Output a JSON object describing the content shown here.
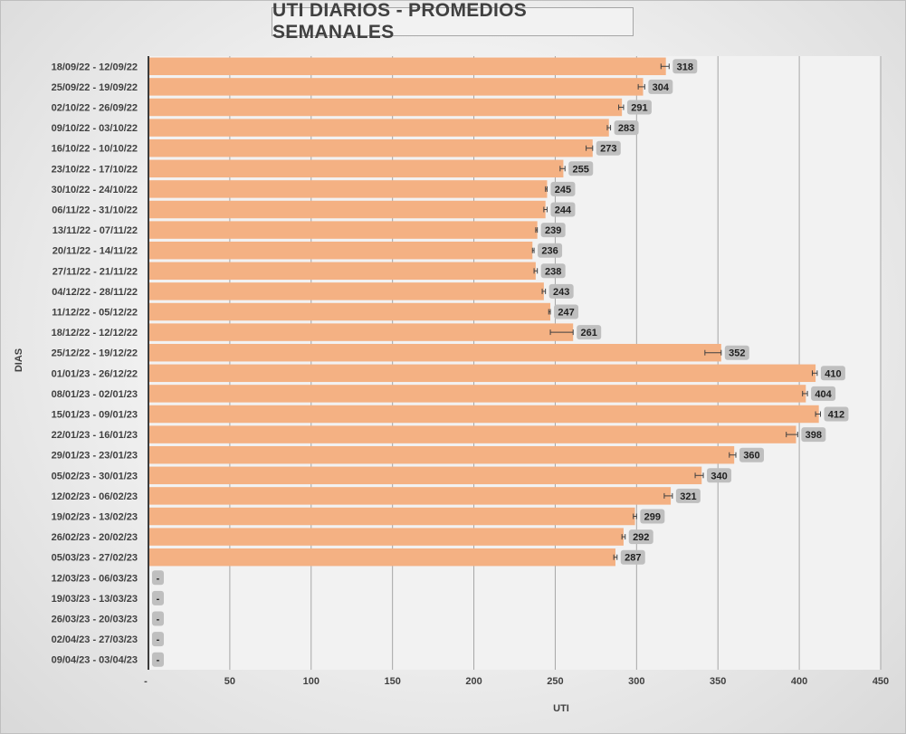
{
  "chart_data": {
    "type": "bar",
    "orientation": "horizontal",
    "title": "UTI DIARIOS - PROMEDIOS SEMANALES",
    "xlabel": "UTI",
    "ylabel": "DIAS",
    "xlim": [
      0,
      450
    ],
    "x_ticks": [
      "-",
      "50",
      "100",
      "150",
      "200",
      "250",
      "300",
      "350",
      "400",
      "450"
    ],
    "grid": "vertical",
    "bar_color": "#f4b183",
    "categories": [
      "18/09/22 - 12/09/22",
      "25/09/22 - 19/09/22",
      "02/10/22 - 26/09/22",
      "09/10/22 - 03/10/22",
      "16/10/22 - 10/10/22",
      "23/10/22 - 17/10/22",
      "30/10/22 - 24/10/22",
      "06/11/22 - 31/10/22",
      "13/11/22 - 07/11/22",
      "20/11/22 - 14/11/22",
      "27/11/22 - 21/11/22",
      "04/12/22 - 28/11/22",
      "11/12/22 - 05/12/22",
      "18/12/22 - 12/12/22",
      "25/12/22 - 19/12/22",
      "01/01/23 - 26/12/22",
      "08/01/23 - 02/01/23",
      "15/01/23 - 09/01/23",
      "22/01/23 - 16/01/23",
      "29/01/23 - 23/01/23",
      "05/02/23 - 30/01/23",
      "12/02/23 - 06/02/23",
      "19/02/23 - 13/02/23",
      "26/02/23 - 20/02/23",
      "05/03/23 - 27/02/23",
      "12/03/23 - 06/03/23",
      "19/03/23 - 13/03/23",
      "26/03/23 - 20/03/23",
      "02/04/23 - 27/03/23",
      "09/04/23 - 03/04/23"
    ],
    "values": [
      318,
      304,
      291,
      283,
      273,
      255,
      245,
      244,
      239,
      236,
      238,
      243,
      247,
      261,
      352,
      410,
      404,
      412,
      398,
      360,
      340,
      321,
      299,
      292,
      287,
      0,
      0,
      0,
      0,
      0
    ],
    "data_labels": [
      "318",
      "304",
      "291",
      "283",
      "273",
      "255",
      "245",
      "244",
      "239",
      "236",
      "238",
      "243",
      "247",
      "261",
      "352",
      "410",
      "404",
      "412",
      "398",
      "360",
      "340",
      "321",
      "299",
      "292",
      "287",
      "-",
      "-",
      "-",
      "-",
      "-"
    ],
    "error_bars": [
      [
        315,
        320
      ],
      [
        301,
        305
      ],
      [
        289,
        292
      ],
      [
        282,
        284
      ],
      [
        269,
        273
      ],
      [
        253,
        256
      ],
      [
        244,
        245
      ],
      [
        243,
        245
      ],
      [
        238,
        239
      ],
      [
        236,
        237
      ],
      [
        237,
        239
      ],
      [
        242,
        244
      ],
      [
        246,
        247
      ],
      [
        247,
        261
      ],
      [
        342,
        352
      ],
      [
        408,
        411
      ],
      [
        402,
        405
      ],
      [
        410,
        413
      ],
      [
        392,
        399
      ],
      [
        357,
        361
      ],
      [
        336,
        341
      ],
      [
        317,
        322
      ],
      [
        298,
        300
      ],
      [
        291,
        293
      ],
      [
        286,
        288
      ],
      null,
      null,
      null,
      null,
      null
    ]
  }
}
